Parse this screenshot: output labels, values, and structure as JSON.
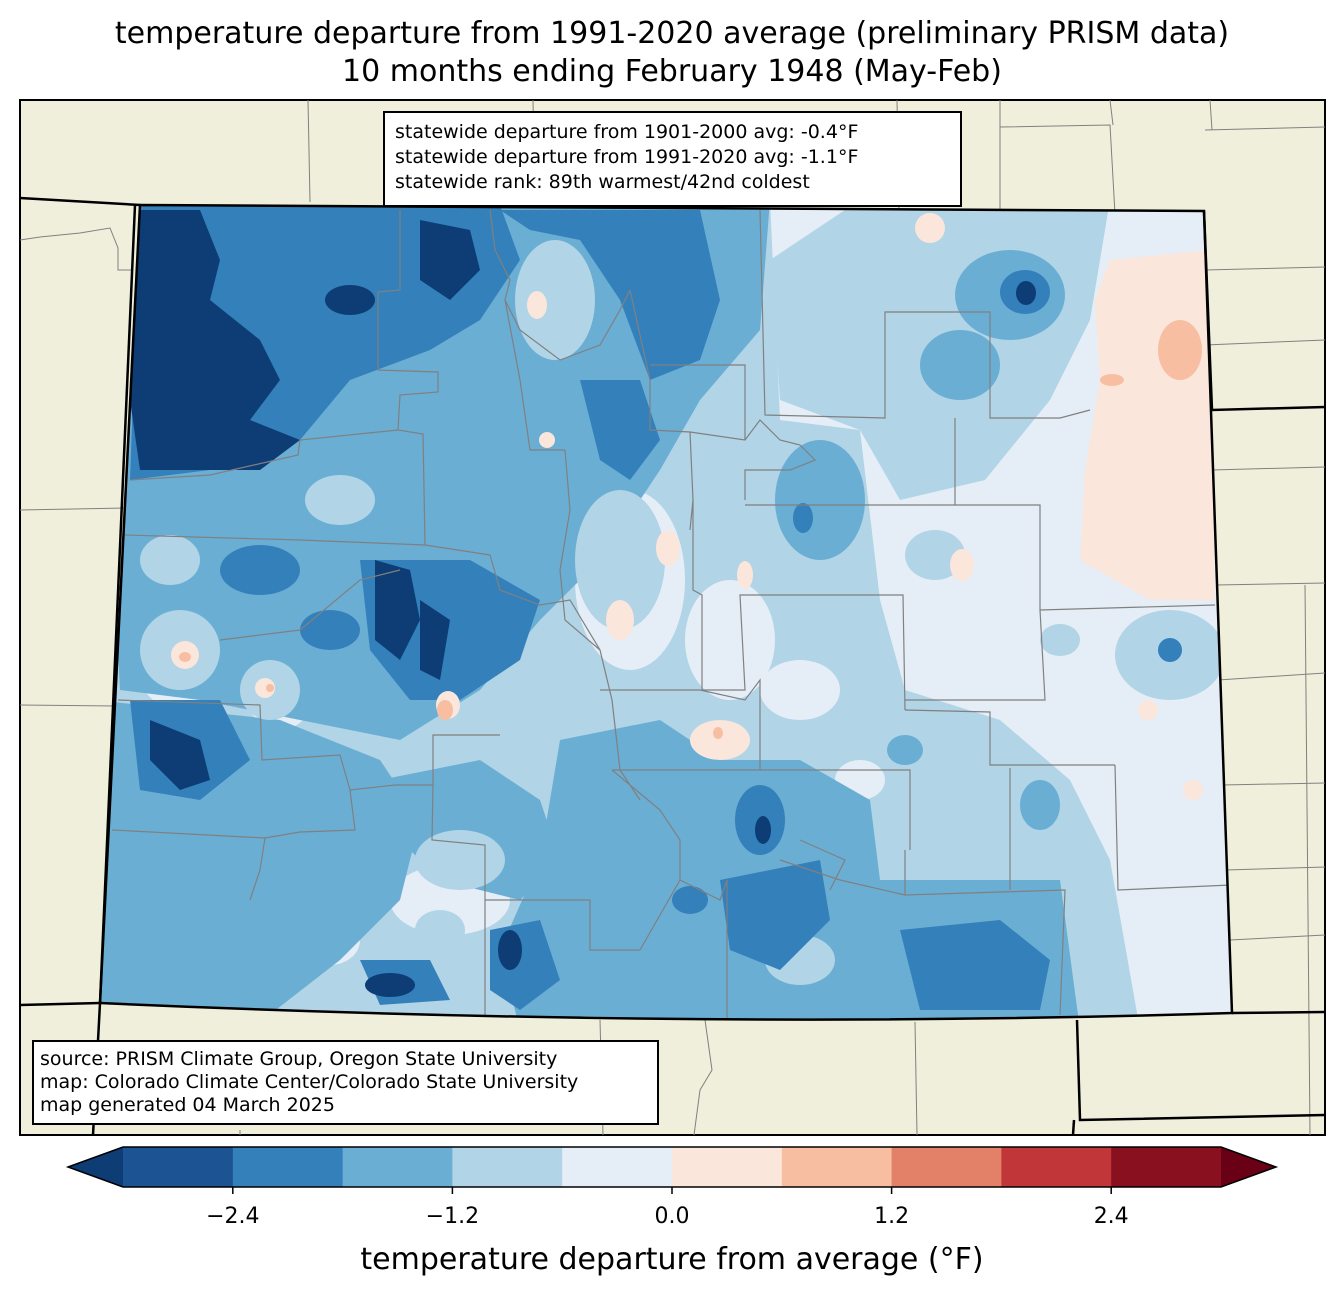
{
  "title": {
    "line1": "temperature departure from 1991-2020 average (preliminary PRISM data)",
    "line2": "10 months ending February 1948 (May-Feb)"
  },
  "stats": {
    "line1": "statewide departure from 1901-2000 avg: -0.4°F",
    "line2": "statewide departure from 1991-2020 avg: -1.1°F",
    "line3": "statewide rank: 89th warmest/42nd coldest"
  },
  "source": {
    "line1": "source: PRISM Climate Group, Oregon State University",
    "line2": "map: Colorado Climate Center/Colorado State University",
    "line3": "map generated 04 March 2025"
  },
  "colorbar": {
    "label": "temperature departure from average (°F)",
    "ticks": [
      "−2.4",
      "−1.2",
      "0.0",
      "1.2",
      "2.4"
    ],
    "tick_values": [
      -2.4,
      -1.2,
      0.0,
      1.2,
      2.4
    ],
    "range": [
      -3.0,
      3.0
    ],
    "bin_edges": [
      -3.0,
      -2.4,
      -1.8,
      -1.2,
      -0.6,
      0.0,
      0.6,
      1.2,
      1.8,
      2.4,
      3.0
    ],
    "colors": [
      "#0d3d74",
      "#1b5393",
      "#3380bb",
      "#6aaed4",
      "#b1d4e7",
      "#e5eef6",
      "#fbe6dc",
      "#f8bea2",
      "#e28068",
      "#c13638",
      "#88101f",
      "#6a0016"
    ]
  },
  "colors": {
    "background_land": "#efefdc",
    "state_border": "#000000",
    "county_border": "#808080"
  }
}
